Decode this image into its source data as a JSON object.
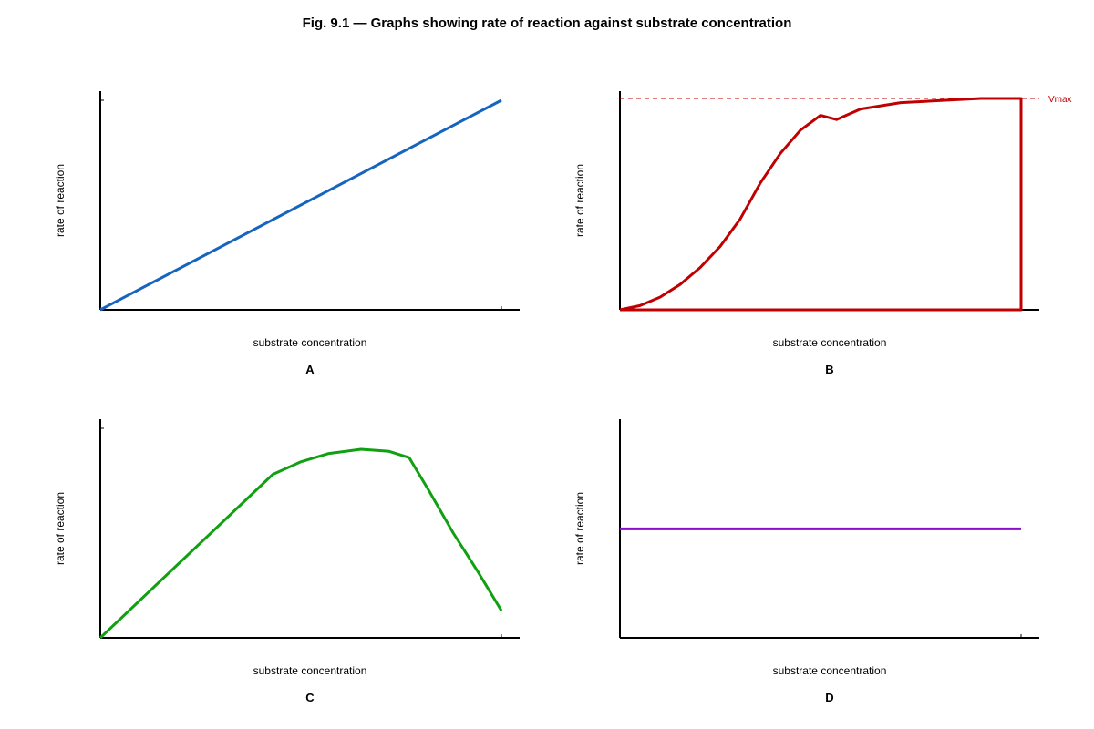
{
  "title": "Fig. 9.1 — Graphs showing rate of reaction against substrate concentration",
  "colors": {
    "A": "#1565c0",
    "B": "#c00000",
    "C": "#11a011",
    "D": "#8a0fc8",
    "vmax": "#c00000"
  },
  "chart_data": [
    {
      "type": "line",
      "panel": "A",
      "xlabel": "substrate concentration",
      "ylabel": "rate of reaction",
      "xlim": [
        0,
        1
      ],
      "ylim": [
        0,
        1
      ],
      "series": [
        {
          "x": [
            0,
            1
          ],
          "y": [
            0,
            1
          ]
        }
      ]
    },
    {
      "type": "line",
      "panel": "B",
      "xlabel": "substrate concentration",
      "ylabel": "rate of reaction",
      "xlim": [
        0,
        1
      ],
      "ylim": [
        0,
        1
      ],
      "reference_line": {
        "label": "Vmax",
        "y": 1,
        "style": "dashed"
      },
      "series": [
        {
          "x": [
            0,
            0.05,
            0.1,
            0.15,
            0.2,
            0.25,
            0.3,
            0.35,
            0.4,
            0.45,
            0.5,
            0.54,
            0.6,
            0.7,
            0.8,
            0.9,
            1,
            1,
            0
          ],
          "y": [
            0,
            0.02,
            0.06,
            0.12,
            0.2,
            0.3,
            0.43,
            0.6,
            0.74,
            0.85,
            0.92,
            0.9,
            0.95,
            0.98,
            0.99,
            1,
            1,
            0,
            0
          ]
        }
      ]
    },
    {
      "type": "line",
      "panel": "C",
      "xlabel": "substrate concentration",
      "ylabel": "rate of reaction",
      "xlim": [
        0,
        1
      ],
      "ylim": [
        0,
        1
      ],
      "series": [
        {
          "x": [
            0,
            0.43,
            0.5,
            0.57,
            0.65,
            0.72,
            0.77,
            0.82,
            0.88,
            0.94,
            1
          ],
          "y": [
            0,
            0.78,
            0.84,
            0.88,
            0.9,
            0.89,
            0.86,
            0.7,
            0.5,
            0.32,
            0.13
          ]
        }
      ]
    },
    {
      "type": "line",
      "panel": "D",
      "xlabel": "substrate concentration",
      "ylabel": "rate of reaction",
      "xlim": [
        0,
        1
      ],
      "ylim": [
        0,
        1
      ],
      "series": [
        {
          "x": [
            0,
            1
          ],
          "y": [
            0.52,
            0.52
          ]
        }
      ]
    }
  ]
}
